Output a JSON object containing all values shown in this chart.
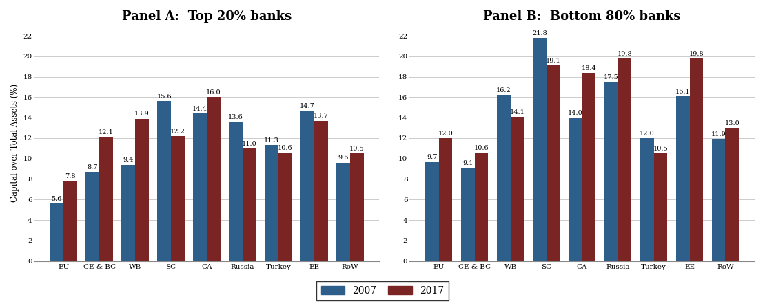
{
  "panel_a": {
    "title": "Panel A:  Top 20% banks",
    "categories": [
      "EU",
      "CE & BC",
      "WB",
      "SC",
      "CA",
      "Russia",
      "Turkey",
      "EE",
      "RoW"
    ],
    "values_2007": [
      5.6,
      8.7,
      9.4,
      15.6,
      14.4,
      13.6,
      11.3,
      14.7,
      9.6
    ],
    "values_2017": [
      7.8,
      12.1,
      13.9,
      12.2,
      16.0,
      11.0,
      10.6,
      13.7,
      10.5
    ]
  },
  "panel_b": {
    "title": "Panel B:  Bottom 80% banks",
    "categories": [
      "EU",
      "CE & BC",
      "WB",
      "SC",
      "CA",
      "Russia",
      "Turkey",
      "EE",
      "RoW"
    ],
    "values_2007": [
      9.7,
      9.1,
      16.2,
      21.8,
      14.0,
      17.5,
      12.0,
      16.1,
      11.9
    ],
    "values_2017": [
      12.0,
      10.6,
      14.1,
      19.1,
      18.4,
      19.8,
      10.5,
      19.8,
      13.0
    ]
  },
  "color_2007": "#2E5F8A",
  "color_2017": "#7B2424",
  "ylabel": "Capital over Total Assets (%)",
  "ylim": [
    0,
    23
  ],
  "yticks": [
    0,
    2,
    4,
    6,
    8,
    10,
    12,
    14,
    16,
    18,
    20,
    22
  ],
  "legend_labels": [
    "2007",
    "2017"
  ],
  "bar_width": 0.38,
  "label_fontsize": 7.0,
  "title_fontsize": 13,
  "tick_fontsize": 7.5,
  "ylabel_fontsize": 8.5,
  "bg_color": "#FFFFFF"
}
